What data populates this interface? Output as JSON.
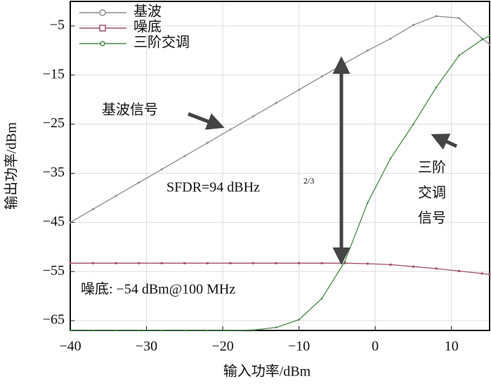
{
  "chart_data": {
    "type": "line",
    "x_label": "输入功率/dBm",
    "y_label": "输出功率/dBm",
    "xlim": [
      -40,
      15
    ],
    "ylim": [
      -67,
      0
    ],
    "xticks": [
      {
        "value": -40,
        "label": "−40"
      },
      {
        "value": -30,
        "label": "−30"
      },
      {
        "value": -20,
        "label": "−20"
      },
      {
        "value": -10,
        "label": "−10"
      },
      0,
      10
    ],
    "yticks": [
      {
        "value": -5,
        "label": "−5"
      },
      {
        "value": -15,
        "label": "−15"
      },
      {
        "value": -25,
        "label": "−25"
      },
      {
        "value": -35,
        "label": "−35"
      },
      {
        "value": -45,
        "label": "−45"
      },
      {
        "value": -55,
        "label": "−55"
      },
      {
        "value": -65,
        "label": "−65"
      }
    ],
    "grid": true,
    "legend": "upper left",
    "series": [
      {
        "name": "基波",
        "color": "#8c8c8c",
        "marker": "circle",
        "x": [
          -40,
          -37,
          -34,
          -31,
          -28,
          -25,
          -22,
          -19,
          -16,
          -13,
          -10,
          -7,
          -4,
          -1,
          2,
          5,
          8,
          11,
          14,
          15
        ],
        "values": [
          -45,
          -42.3,
          -39.6,
          -36.9,
          -34.2,
          -31.5,
          -28.8,
          -26.1,
          -23.4,
          -20.7,
          -18,
          -15.3,
          -12.6,
          -10,
          -7.6,
          -4.8,
          -3,
          -3.4,
          -7.5,
          -8.8
        ]
      },
      {
        "name": "噪底",
        "color": "#a0506a",
        "marker": "square",
        "x": [
          -40,
          -37,
          -34,
          -31,
          -28,
          -25,
          -22,
          -19,
          -16,
          -13,
          -10,
          -7,
          -4,
          -1,
          2,
          5,
          8,
          11,
          14,
          15
        ],
        "values": [
          -53.3,
          -53.3,
          -53.3,
          -53.3,
          -53.3,
          -53.3,
          -53.3,
          -53.3,
          -53.3,
          -53.3,
          -53.3,
          -53.3,
          -53.3,
          -53.4,
          -53.6,
          -54,
          -54.4,
          -54.9,
          -55.4,
          -55.6
        ]
      },
      {
        "name": "三阶交调",
        "color": "#4a8a4a",
        "marker": "dot",
        "x": [
          -40,
          -37,
          -34,
          -31,
          -28,
          -25,
          -22,
          -19,
          -16,
          -13,
          -10,
          -7,
          -4,
          -1,
          2,
          5,
          8,
          11,
          14,
          15
        ],
        "values": [
          -67,
          -67,
          -67,
          -67,
          -67,
          -67,
          -67,
          -67,
          -66.9,
          -66.4,
          -64.8,
          -60.5,
          -53,
          -41,
          -32,
          -25,
          -17.5,
          -11,
          -7.8,
          -7
        ]
      }
    ],
    "annotations": [
      "基波信号",
      "三阶",
      "交调",
      "信号",
      "SFDR=94 dBHz",
      "2/3",
      "噪底: −54 dBm@100 MHz"
    ]
  }
}
